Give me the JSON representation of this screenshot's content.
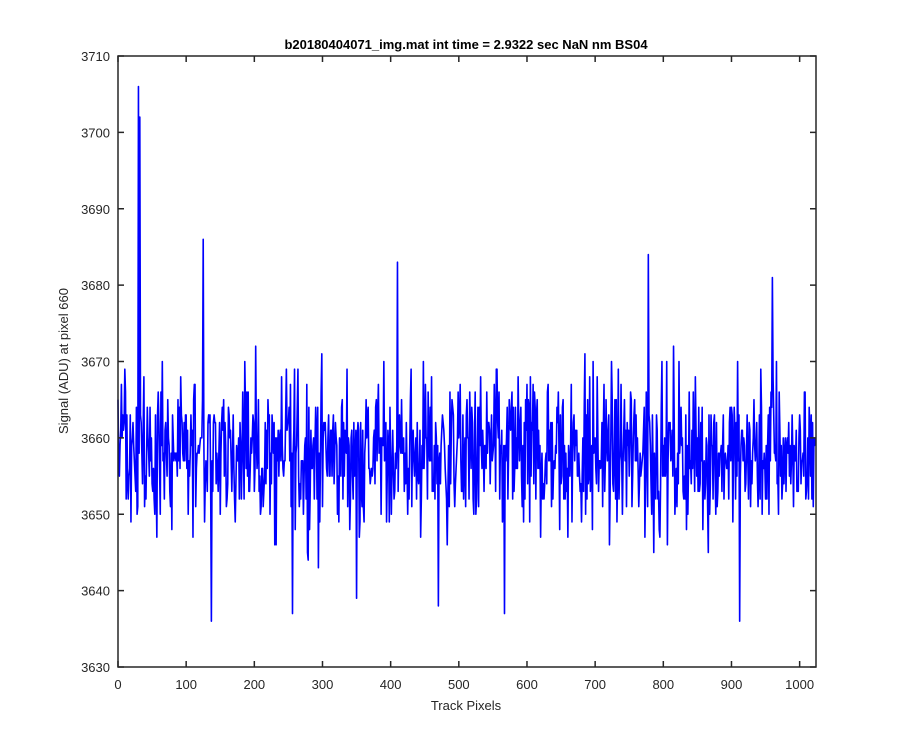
{
  "chart_data": {
    "type": "line",
    "title": "b20180404071_img.mat int time = 2.9322 sec  NaN nm BS04",
    "xlabel": "Track Pixels",
    "ylabel": "Signal (ADU) at pixel 660",
    "xlim": [
      0,
      1024
    ],
    "ylim": [
      3630,
      3710
    ],
    "xticks": [
      0,
      100,
      200,
      300,
      400,
      500,
      600,
      700,
      800,
      900,
      1000
    ],
    "yticks": [
      3630,
      3640,
      3650,
      3660,
      3670,
      3680,
      3690,
      3700,
      3710
    ],
    "grid": false,
    "legend": "none",
    "series": [
      {
        "color": "#0000ff",
        "points_count": 1024,
        "approx_mean": 3658,
        "notable_points": [
          {
            "x": 30,
            "y": 3706
          },
          {
            "x": 32,
            "y": 3702
          },
          {
            "x": 125,
            "y": 3686
          },
          {
            "x": 137,
            "y": 3636
          },
          {
            "x": 256,
            "y": 3637
          },
          {
            "x": 350,
            "y": 3639
          },
          {
            "x": 410,
            "y": 3683
          },
          {
            "x": 470,
            "y": 3638
          },
          {
            "x": 567,
            "y": 3637
          },
          {
            "x": 778,
            "y": 3684
          },
          {
            "x": 912,
            "y": 3636
          },
          {
            "x": 960,
            "y": 3681
          }
        ]
      }
    ]
  }
}
